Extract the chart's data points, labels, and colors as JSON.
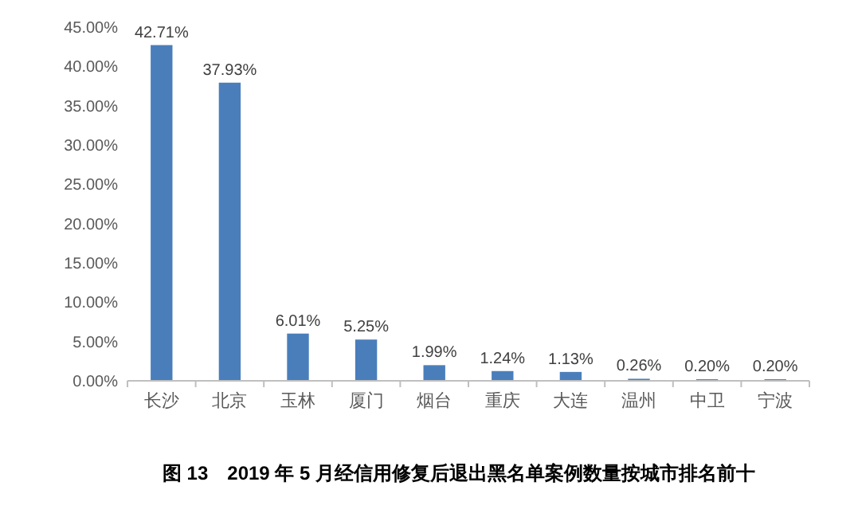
{
  "chart_data": {
    "type": "bar",
    "title": "图 13　2019 年 5 月经信用修复后退出黑名单案例数量按城市排名前十",
    "categories": [
      "长沙",
      "北京",
      "玉林",
      "厦门",
      "烟台",
      "重庆",
      "大连",
      "温州",
      "中卫",
      "宁波"
    ],
    "values": [
      42.71,
      37.93,
      6.01,
      5.25,
      1.99,
      1.24,
      1.13,
      0.26,
      0.2,
      0.2
    ],
    "value_labels": [
      "42.71%",
      "37.93%",
      "6.01%",
      "5.25%",
      "1.99%",
      "1.24%",
      "1.13%",
      "0.26%",
      "0.20%",
      "0.20%"
    ],
    "color": "#4a7ebb",
    "ylim": [
      0,
      45
    ],
    "yticks": [
      {
        "value": 0,
        "label": "0.00%"
      },
      {
        "value": 5,
        "label": "5.00%"
      },
      {
        "value": 10,
        "label": "10.00%"
      },
      {
        "value": 15,
        "label": "15.00%"
      },
      {
        "value": 20,
        "label": "20.00%"
      },
      {
        "value": 25,
        "label": "25.00%"
      },
      {
        "value": 30,
        "label": "30.00%"
      },
      {
        "value": 35,
        "label": "35.00%"
      },
      {
        "value": 40,
        "label": "40.00%"
      },
      {
        "value": 45,
        "label": "45.00%"
      }
    ],
    "grid": false
  }
}
